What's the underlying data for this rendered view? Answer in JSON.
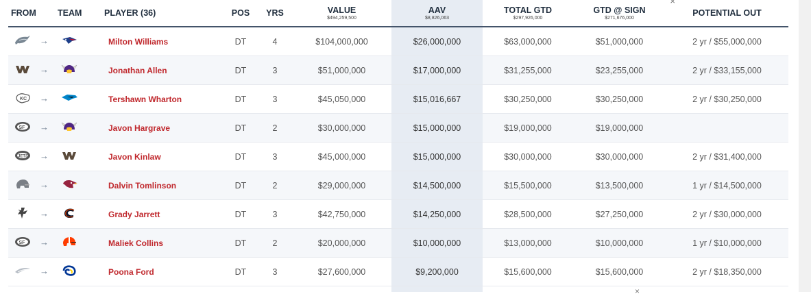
{
  "headers": {
    "from": "FROM",
    "team": "TEAM",
    "player": "PLAYER (36)",
    "pos": "POS",
    "yrs": "YRS",
    "value": "VALUE",
    "value_total": "$494,259,500",
    "aav": "AAV",
    "aav_total": "$8,826,063",
    "total_gtd": "TOTAL GTD",
    "total_gtd_total": "$297,926,000",
    "gtd_sign": "GTD @ SIGN",
    "gtd_sign_total": "$271,676,000",
    "potential_out": "POTENTIAL OUT"
  },
  "arrow_glyph": "→",
  "close_glyph": "×",
  "rows": [
    {
      "from_team": "Eagles",
      "to_team": "Patriots",
      "player": "Milton Williams",
      "pos": "DT",
      "yrs": "4",
      "value": "$104,000,000",
      "aav": "$26,000,000",
      "total_gtd": "$63,000,000",
      "gtd_sign": "$51,000,000",
      "potential_out": "2 yr / $55,000,000"
    },
    {
      "from_team": "Commanders",
      "to_team": "Vikings",
      "player": "Jonathan Allen",
      "pos": "DT",
      "yrs": "3",
      "value": "$51,000,000",
      "aav": "$17,000,000",
      "total_gtd": "$31,255,000",
      "gtd_sign": "$23,255,000",
      "potential_out": "2 yr / $33,155,000"
    },
    {
      "from_team": "Chiefs",
      "to_team": "Panthers",
      "player": "Tershawn Wharton",
      "pos": "DT",
      "yrs": "3",
      "value": "$45,050,000",
      "aav": "$15,016,667",
      "total_gtd": "$30,250,000",
      "gtd_sign": "$30,250,000",
      "potential_out": "2 yr / $30,250,000"
    },
    {
      "from_team": "49ers",
      "to_team": "Vikings",
      "player": "Javon Hargrave",
      "pos": "DT",
      "yrs": "2",
      "value": "$30,000,000",
      "aav": "$15,000,000",
      "total_gtd": "$19,000,000",
      "gtd_sign": "$19,000,000",
      "potential_out": ""
    },
    {
      "from_team": "Jets",
      "to_team": "Commanders",
      "player": "Javon Kinlaw",
      "pos": "DT",
      "yrs": "3",
      "value": "$45,000,000",
      "aav": "$15,000,000",
      "total_gtd": "$30,000,000",
      "gtd_sign": "$30,000,000",
      "potential_out": "2 yr / $31,400,000"
    },
    {
      "from_team": "Free Agent",
      "to_team": "Cardinals",
      "player": "Dalvin Tomlinson",
      "pos": "DT",
      "yrs": "2",
      "value": "$29,000,000",
      "aav": "$14,500,000",
      "total_gtd": "$15,500,000",
      "gtd_sign": "$13,500,000",
      "potential_out": "1 yr / $14,500,000"
    },
    {
      "from_team": "Falcons",
      "to_team": "Bears",
      "player": "Grady Jarrett",
      "pos": "DT",
      "yrs": "3",
      "value": "$42,750,000",
      "aav": "$14,250,000",
      "total_gtd": "$28,500,000",
      "gtd_sign": "$27,250,000",
      "potential_out": "2 yr / $30,000,000"
    },
    {
      "from_team": "49ers",
      "to_team": "Browns",
      "player": "Maliek Collins",
      "pos": "DT",
      "yrs": "2",
      "value": "$20,000,000",
      "aav": "$10,000,000",
      "total_gtd": "$13,000,000",
      "gtd_sign": "$10,000,000",
      "potential_out": "1 yr / $10,000,000"
    },
    {
      "from_team": "Chargers",
      "to_team": "Rams",
      "player": "Poona Ford",
      "pos": "DT",
      "yrs": "3",
      "value": "$27,600,000",
      "aav": "$9,200,000",
      "total_gtd": "$15,600,000",
      "gtd_sign": "$15,600,000",
      "potential_out": "2 yr / $18,350,000"
    }
  ]
}
